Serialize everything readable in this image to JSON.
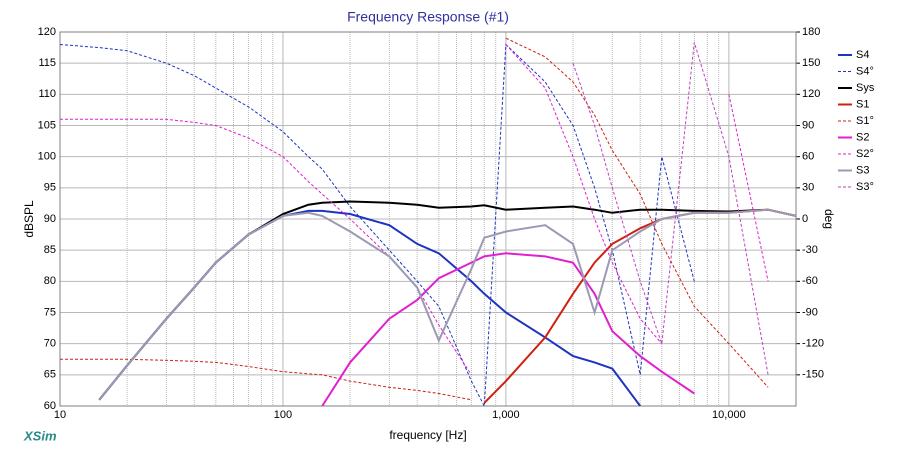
{
  "chart_data": {
    "type": "line",
    "title": "Frequency Response (#1)",
    "xlabel": "frequency [Hz]",
    "ylabel": "dBSPL",
    "y2label": "deg",
    "logo": "XSim",
    "xscale": "log",
    "grid": true,
    "legend": "right",
    "xlim": [
      10,
      20000
    ],
    "xticks": [
      10,
      100,
      {
        "value": 1000,
        "label": "1,000"
      },
      {
        "value": 10000,
        "label": "10,000"
      }
    ],
    "ylim": [
      60,
      120
    ],
    "yticks": [
      60,
      65,
      70,
      75,
      80,
      85,
      90,
      95,
      100,
      105,
      110,
      115,
      120
    ],
    "y2lim": [
      -180,
      180
    ],
    "y2ticks": [
      180,
      150,
      120,
      90,
      60,
      30,
      0,
      -30,
      -60,
      -90,
      -120,
      -150
    ],
    "x": [
      10,
      15,
      20,
      30,
      40,
      50,
      70,
      100,
      130,
      150,
      200,
      300,
      400,
      500,
      700,
      800,
      1000,
      1500,
      2000,
      2500,
      3000,
      4000,
      5000,
      7000,
      10000,
      15000,
      20000
    ],
    "series": [
      {
        "name": "S4",
        "color": "#1c34c0",
        "width": 2,
        "values": [
          null,
          61,
          66.5,
          74,
          79,
          83,
          87.5,
          90.5,
          91.3,
          91.3,
          90.8,
          89,
          86,
          84.5,
          80,
          78,
          75,
          71,
          68,
          67,
          66,
          60,
          null,
          null,
          null,
          null,
          null
        ]
      },
      {
        "name": "S4°",
        "color": "#1c34c0",
        "dashed": true,
        "axis": "y2",
        "values": [
          168,
          165,
          162,
          150,
          138,
          126,
          108,
          84,
          60,
          48,
          12,
          -30,
          -60,
          -84,
          -156,
          -180,
          168,
          132,
          90,
          30,
          -30,
          -150,
          60,
          -60,
          null,
          null,
          null
        ]
      },
      {
        "name": "Sys",
        "color": "#000000",
        "width": 2,
        "values": [
          null,
          61,
          66.5,
          74,
          79,
          83,
          87.5,
          90.8,
          92.3,
          92.6,
          92.8,
          92.6,
          92.3,
          91.8,
          92,
          92.2,
          91.5,
          91.8,
          92,
          91.5,
          91,
          91.5,
          91.5,
          91.3,
          91.2,
          91.5,
          90.5
        ]
      },
      {
        "name": "S1",
        "color": "#d02010",
        "width": 2,
        "values": [
          null,
          null,
          null,
          null,
          null,
          null,
          null,
          null,
          null,
          null,
          null,
          null,
          null,
          null,
          null,
          60.5,
          64,
          71,
          78,
          83,
          86,
          88.5,
          90,
          91,
          91,
          91.5,
          90.5
        ]
      },
      {
        "name": "S1°",
        "color": "#d02010",
        "dashed": true,
        "axis": "y2",
        "values": [
          -135,
          -135,
          -135,
          -136,
          -137,
          -138,
          -142,
          -147,
          -149,
          -150,
          -156,
          -162,
          -165,
          -168,
          -174,
          null,
          174,
          156,
          132,
          100,
          66,
          24,
          -24,
          -84,
          -120,
          -162,
          null
        ]
      },
      {
        "name": "S2",
        "color": "#e020d0",
        "width": 2,
        "values": [
          null,
          null,
          null,
          null,
          null,
          null,
          null,
          null,
          null,
          60,
          67,
          74,
          77,
          80.5,
          83,
          84,
          84.5,
          84,
          83,
          78,
          72,
          68,
          65.5,
          62,
          null,
          null,
          null
        ]
      },
      {
        "name": "S2°",
        "color": "#e020d0",
        "dashed": true,
        "axis": "y2",
        "values": [
          96,
          96,
          96,
          96,
          93,
          90,
          78,
          60,
          36,
          24,
          0,
          -36,
          -66,
          -102,
          -150,
          null,
          168,
          126,
          60,
          0,
          -42,
          -96,
          -120,
          null,
          120,
          -60,
          null
        ]
      },
      {
        "name": "S3",
        "color": "#9a9ab4",
        "width": 2,
        "values": [
          null,
          61,
          66.5,
          74,
          79,
          83,
          87.5,
          90.5,
          91,
          90.5,
          88,
          84,
          79,
          70.5,
          82,
          87,
          88,
          89,
          86,
          75,
          85,
          88,
          90,
          91,
          91,
          91.5,
          90.5
        ]
      },
      {
        "name": "S3°",
        "color": "#c040c0",
        "dashed": true,
        "axis": "y2",
        "values": [
          null,
          null,
          null,
          null,
          null,
          null,
          null,
          null,
          null,
          null,
          null,
          null,
          null,
          null,
          null,
          null,
          null,
          null,
          150,
          90,
          30,
          -60,
          -120,
          170,
          60,
          -150,
          null
        ]
      }
    ]
  }
}
